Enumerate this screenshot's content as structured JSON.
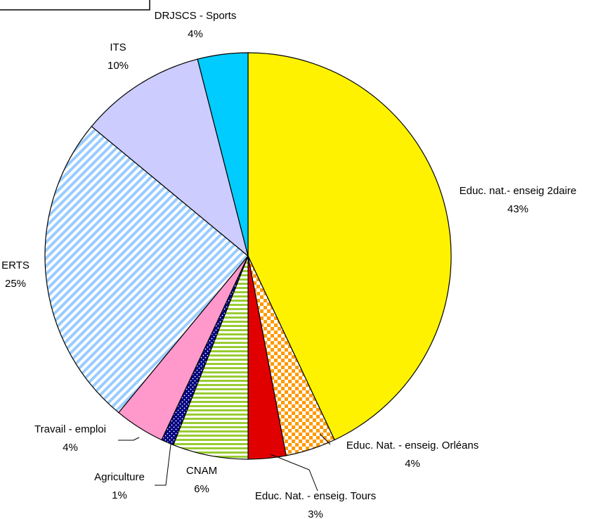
{
  "chart_data": {
    "type": "pie",
    "categories": [
      "Educ. nat.- enseig 2daire",
      "Educ. Nat. - enseig. Orléans",
      "Educ. Nat. - enseig. Tours",
      "CNAM",
      "Agriculture",
      "Travail - emploi",
      "ERTS",
      "ITS",
      "DRJSCS - Sports"
    ],
    "values": [
      43,
      4,
      3,
      6,
      1,
      4,
      25,
      10,
      4
    ],
    "value_labels": [
      "43%",
      "4%",
      "3%",
      "6%",
      "1%",
      "4%",
      "25%",
      "10%",
      "4%"
    ],
    "colors": [
      "#fff200",
      "#ff9900",
      "#e00000",
      "#99cc33",
      "#000080",
      "#ff99cc",
      "#99ccff",
      "#ccccff",
      "#00ccff"
    ],
    "patterns": [
      null,
      "checker",
      null,
      "hstripes",
      "dots",
      null,
      "diagstripes",
      null,
      null
    ]
  }
}
